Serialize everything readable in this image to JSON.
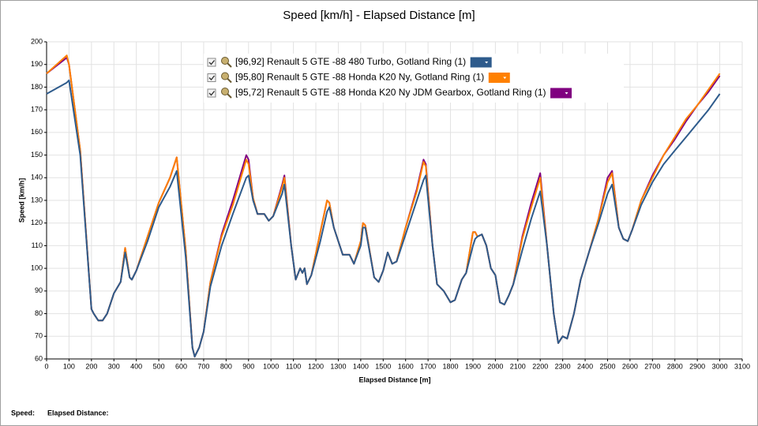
{
  "chart_data": {
    "type": "line",
    "title": "Speed [km/h] - Elapsed Distance [m]",
    "x_label": "Elapsed Distance [m]",
    "y_label": "Speed [km/h]",
    "xlim": [
      0,
      3100
    ],
    "xticks": [
      0,
      100,
      200,
      300,
      400,
      500,
      600,
      700,
      800,
      900,
      1000,
      1100,
      1200,
      1300,
      1400,
      1500,
      1600,
      1700,
      1800,
      1900,
      2000,
      2100,
      2200,
      2300,
      2400,
      2500,
      2600,
      2700,
      2800,
      2900,
      3000,
      3100
    ],
    "ylim": [
      60,
      200
    ],
    "yticks": [
      60,
      70,
      80,
      90,
      100,
      110,
      120,
      130,
      140,
      150,
      160,
      170,
      180,
      190,
      200
    ],
    "grid": true,
    "x": [
      0,
      90,
      100,
      150,
      200,
      210,
      230,
      250,
      270,
      300,
      330,
      350,
      370,
      380,
      400,
      450,
      500,
      550,
      580,
      620,
      650,
      660,
      680,
      700,
      730,
      780,
      830,
      890,
      900,
      920,
      940,
      970,
      990,
      1010,
      1050,
      1060,
      1090,
      1110,
      1130,
      1140,
      1150,
      1160,
      1180,
      1220,
      1250,
      1260,
      1280,
      1320,
      1350,
      1370,
      1400,
      1410,
      1420,
      1460,
      1480,
      1500,
      1520,
      1540,
      1560,
      1600,
      1650,
      1680,
      1690,
      1720,
      1740,
      1770,
      1800,
      1820,
      1850,
      1870,
      1900,
      1910,
      1920,
      1940,
      1960,
      1980,
      2000,
      2020,
      2040,
      2060,
      2080,
      2120,
      2160,
      2200,
      2230,
      2260,
      2280,
      2300,
      2320,
      2350,
      2380,
      2420,
      2460,
      2500,
      2520,
      2550,
      2570,
      2590,
      2610,
      2650,
      2700,
      2750,
      2800,
      2850,
      2900,
      2950,
      3000
    ],
    "series": [
      {
        "name": "[96,92] Renault 5 GTE -88 480 Turbo, Gotland Ring (1)",
        "color": "#2e5b8c",
        "values": [
          177,
          182,
          183,
          150,
          82,
          80,
          77,
          77,
          80,
          89,
          94,
          107,
          96,
          95,
          99,
          112,
          127,
          136,
          143,
          105,
          65,
          61,
          65,
          72,
          92,
          110,
          124,
          140,
          141,
          130,
          124,
          124,
          121,
          123,
          133,
          137,
          110,
          95,
          100,
          98,
          100,
          93,
          97,
          112,
          125,
          127,
          118,
          106,
          106,
          102,
          110,
          118,
          118,
          96,
          94,
          99,
          107,
          102,
          103,
          115,
          130,
          139,
          141,
          110,
          93,
          90,
          85,
          86,
          95,
          98,
          110,
          113,
          114,
          115,
          110,
          100,
          97,
          85,
          84,
          88,
          93,
          108,
          122,
          134,
          110,
          80,
          67,
          70,
          69,
          80,
          95,
          108,
          120,
          133,
          137,
          118,
          113,
          112,
          117,
          128,
          138,
          146,
          152,
          158,
          164,
          170,
          177
        ]
      },
      {
        "name": "[95,80] Renault 5 GTE -88 Honda K20 Ny, Gotland Ring (1)",
        "color": "#ff8000",
        "values": [
          186,
          194,
          190,
          152,
          82,
          80,
          77,
          77,
          80,
          89,
          94,
          109,
          96,
          95,
          99,
          114,
          129,
          140,
          149,
          108,
          65,
          61,
          65,
          72,
          94,
          114,
          128,
          148,
          146,
          131,
          124,
          124,
          121,
          123,
          136,
          140,
          110,
          95,
          100,
          98,
          100,
          93,
          97,
          116,
          130,
          129,
          118,
          106,
          106,
          102,
          112,
          120,
          119,
          96,
          94,
          99,
          107,
          102,
          103,
          118,
          134,
          147,
          145,
          110,
          93,
          90,
          85,
          86,
          95,
          98,
          116,
          116,
          114,
          115,
          110,
          100,
          97,
          85,
          84,
          88,
          93,
          113,
          127,
          140,
          110,
          80,
          67,
          70,
          69,
          80,
          95,
          108,
          122,
          138,
          142,
          118,
          113,
          112,
          117,
          130,
          140,
          150,
          158,
          166,
          172,
          179,
          186
        ]
      },
      {
        "name": "[95,72] Renault 5 GTE -88 Honda K20 Ny JDM Gearbox, Gotland Ring (1)",
        "color": "#800080",
        "values": [
          186,
          193,
          190,
          152,
          82,
          80,
          77,
          77,
          80,
          89,
          94,
          109,
          96,
          95,
          99,
          114,
          129,
          140,
          149,
          108,
          65,
          61,
          65,
          72,
          94,
          115,
          130,
          150,
          148,
          131,
          124,
          124,
          121,
          123,
          137,
          141,
          110,
          95,
          100,
          98,
          100,
          93,
          97,
          116,
          130,
          129,
          118,
          106,
          106,
          102,
          112,
          120,
          119,
          96,
          94,
          99,
          107,
          102,
          103,
          118,
          135,
          148,
          146,
          110,
          93,
          90,
          85,
          86,
          95,
          98,
          116,
          116,
          114,
          115,
          110,
          100,
          97,
          85,
          84,
          88,
          93,
          114,
          129,
          142,
          110,
          80,
          67,
          70,
          69,
          80,
          95,
          108,
          122,
          140,
          143,
          118,
          113,
          112,
          117,
          130,
          141,
          150,
          157,
          165,
          172,
          178,
          185
        ]
      }
    ],
    "footer": [
      "Speed:",
      "Elapsed Distance:"
    ]
  }
}
